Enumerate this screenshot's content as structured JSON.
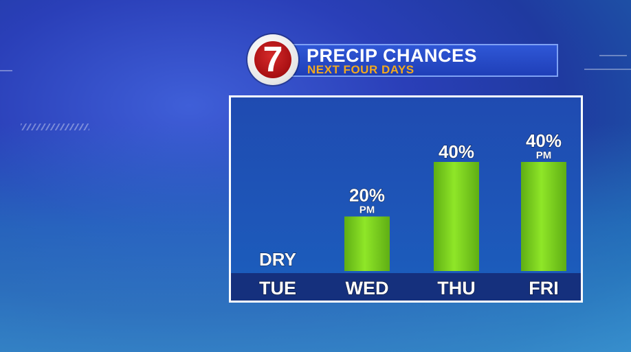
{
  "header": {
    "logo": "7",
    "title": "PRECIP CHANCES",
    "subtitle": "NEXT FOUR DAYS"
  },
  "colors": {
    "bar": "#7ed321",
    "panel": "#1e56b8",
    "strip": "#15307d",
    "subtitle": "#f2a91e",
    "logo_red": "#b3141a"
  },
  "chart_data": {
    "type": "bar",
    "title": "PRECIP CHANCES",
    "subtitle": "NEXT FOUR DAYS",
    "categories": [
      "TUE",
      "WED",
      "THU",
      "FRI"
    ],
    "values": [
      0,
      20,
      40,
      40
    ],
    "data_labels": [
      "DRY",
      "20%",
      "40%",
      "40%"
    ],
    "data_sublabels": [
      "",
      "PM",
      "",
      "PM"
    ],
    "ylim": [
      0,
      40
    ],
    "unit": "%",
    "grid": false,
    "legend": "none"
  }
}
